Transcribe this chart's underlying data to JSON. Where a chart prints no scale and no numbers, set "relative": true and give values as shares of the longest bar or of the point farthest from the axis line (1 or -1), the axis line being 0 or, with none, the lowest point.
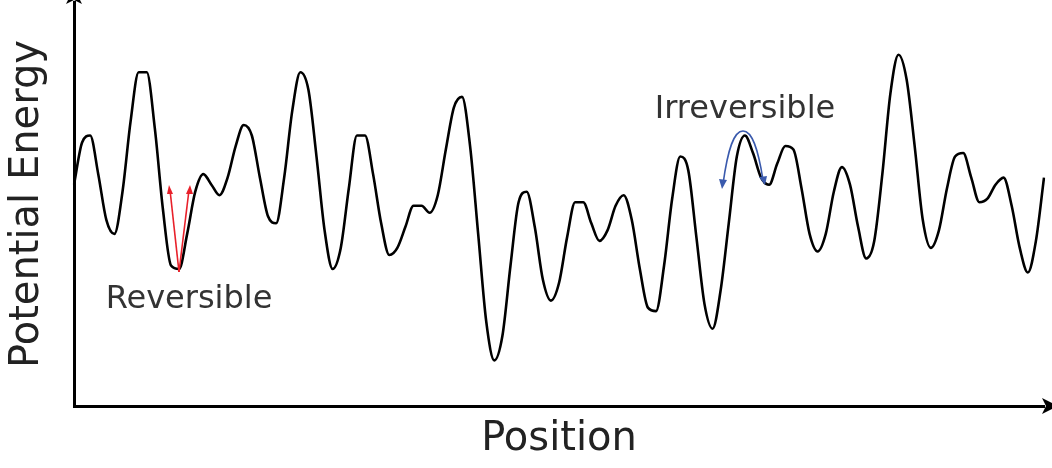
{
  "chart_data": {
    "type": "line",
    "xlabel": "Position",
    "ylabel": "Potential Energy",
    "relative": true,
    "color": "#000000",
    "categories": [
      null,
      null,
      null,
      null,
      null,
      null,
      null,
      null,
      null,
      null,
      null,
      null,
      null,
      null,
      null,
      null,
      null,
      null,
      null,
      null,
      null,
      null,
      null,
      null,
      null,
      null,
      null,
      null,
      null,
      null,
      null,
      null,
      null,
      null,
      null,
      null,
      null,
      null,
      null,
      null,
      null,
      null,
      null,
      null,
      null,
      null,
      null,
      null,
      null,
      null,
      null,
      null,
      null,
      null,
      null,
      null,
      null,
      null,
      null,
      null,
      null,
      null,
      null,
      null,
      null,
      null,
      null,
      null,
      null,
      null,
      null,
      null,
      null,
      null,
      null,
      null,
      null,
      null,
      null,
      null,
      null,
      null,
      null,
      null,
      null,
      null,
      null,
      null,
      null,
      null,
      null,
      null,
      null,
      null,
      null,
      null,
      null,
      null,
      null,
      null,
      null,
      null,
      null,
      null,
      null,
      null,
      null,
      null,
      null,
      null,
      null,
      null,
      null,
      null,
      null,
      null,
      null,
      null,
      null,
      null,
      null
    ],
    "values": [
      0.63,
      0.75,
      0.77,
      0.66,
      0.53,
      0.49,
      0.61,
      0.81,
      0.95,
      0.95,
      0.79,
      0.56,
      0.4,
      0.39,
      0.49,
      0.61,
      0.66,
      0.63,
      0.6,
      0.65,
      0.74,
      0.8,
      0.77,
      0.65,
      0.54,
      0.52,
      0.65,
      0.84,
      0.95,
      0.9,
      0.71,
      0.5,
      0.39,
      0.45,
      0.62,
      0.77,
      0.77,
      0.66,
      0.52,
      0.43,
      0.45,
      0.51,
      0.57,
      0.57,
      0.55,
      0.6,
      0.73,
      0.85,
      0.88,
      0.74,
      0.49,
      0.24,
      0.13,
      0.2,
      0.4,
      0.58,
      0.61,
      0.51,
      0.36,
      0.3,
      0.35,
      0.48,
      0.58,
      0.58,
      0.52,
      0.47,
      0.5,
      0.57,
      0.6,
      0.53,
      0.39,
      0.28,
      0.27,
      0.4,
      0.59,
      0.71,
      0.67,
      0.48,
      0.29,
      0.22,
      0.33,
      0.52,
      0.71,
      0.77,
      0.72,
      0.65,
      0.63,
      0.69,
      0.74,
      0.73,
      0.62,
      0.49,
      0.44,
      0.49,
      0.61,
      0.68,
      0.63,
      0.51,
      0.42,
      0.47,
      0.66,
      0.89,
      1,
      0.93,
      0.74,
      0.53,
      0.45,
      0.5,
      0.62,
      0.71,
      0.72,
      0.65,
      0.58,
      0.59,
      0.63,
      0.65,
      0.57,
      0.45,
      0.38,
      0.47,
      0.65
    ],
    "annotations": [
      "Reversible",
      "Irreversible"
    ]
  }
}
